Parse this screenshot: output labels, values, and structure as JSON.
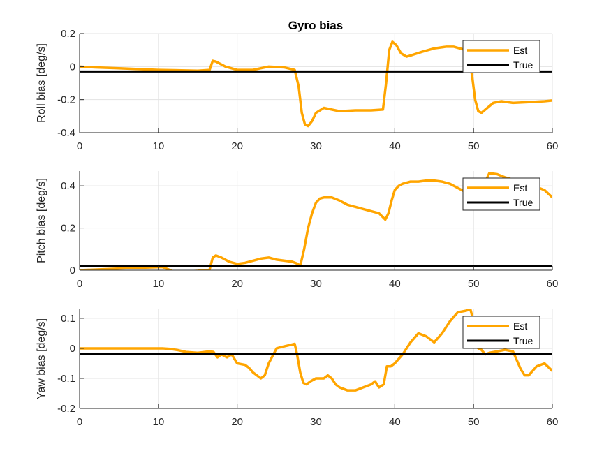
{
  "figure": {
    "title": "Gyro bias"
  },
  "colors": {
    "est": "#FFA500",
    "true": "#000000",
    "grid": "#e3e3e3",
    "axis": "#262626"
  },
  "chart_data": [
    {
      "type": "line",
      "title": "Gyro bias",
      "xlabel": "",
      "ylabel": "Roll bias [deg/s]",
      "xlim": [
        0,
        60
      ],
      "ylim": [
        -0.4,
        0.2
      ],
      "xticks": [
        0,
        10,
        20,
        30,
        40,
        50,
        60
      ],
      "yticks": [
        -0.4,
        -0.2,
        0,
        0.2
      ],
      "xtick_labels": [
        "0",
        "10",
        "20",
        "30",
        "40",
        "50",
        "60"
      ],
      "ytick_labels": [
        "-0.4",
        "-0.2",
        "0",
        "0.2"
      ],
      "grid": true,
      "legend": "top-right",
      "series": [
        {
          "name": "Est",
          "color": "#FFA500",
          "x": [
            0,
            2,
            5,
            10,
            15,
            16.5,
            16.9,
            17.3,
            18.5,
            20,
            22,
            24,
            26,
            27.3,
            27.8,
            28.2,
            28.6,
            29,
            29.5,
            30,
            31,
            32,
            33,
            35,
            37,
            38.5,
            38.9,
            39.3,
            39.7,
            40.2,
            40.8,
            41.5,
            42.2,
            43.5,
            45,
            46.5,
            47.5,
            49,
            49.4,
            49.8,
            50.2,
            50.6,
            51,
            51.5,
            52.5,
            53.5,
            55,
            57,
            59,
            60
          ],
          "y": [
            0.0,
            -0.005,
            -0.01,
            -0.02,
            -0.025,
            -0.02,
            0.035,
            0.03,
            0.0,
            -0.02,
            -0.02,
            0.0,
            -0.005,
            -0.02,
            -0.12,
            -0.28,
            -0.35,
            -0.36,
            -0.33,
            -0.28,
            -0.25,
            -0.26,
            -0.27,
            -0.265,
            -0.265,
            -0.26,
            -0.1,
            0.1,
            0.15,
            0.13,
            0.08,
            0.06,
            0.07,
            0.09,
            0.11,
            0.12,
            0.12,
            0.1,
            0.05,
            -0.05,
            -0.2,
            -0.27,
            -0.28,
            -0.26,
            -0.22,
            -0.21,
            -0.22,
            -0.215,
            -0.21,
            -0.205
          ]
        },
        {
          "name": "True",
          "color": "#000000",
          "x": [
            0,
            60
          ],
          "y": [
            -0.03,
            -0.03
          ]
        }
      ]
    },
    {
      "type": "line",
      "title": "",
      "xlabel": "",
      "ylabel": "Pitch bias [deg/s]",
      "xlim": [
        0,
        60
      ],
      "ylim": [
        0,
        0.47
      ],
      "xticks": [
        0,
        10,
        20,
        30,
        40,
        50,
        60
      ],
      "yticks": [
        0,
        0.2,
        0.4
      ],
      "xtick_labels": [
        "0",
        "10",
        "20",
        "30",
        "40",
        "50",
        "60"
      ],
      "ytick_labels": [
        "0",
        "0.2",
        "0.4"
      ],
      "grid": true,
      "legend": "top-right",
      "series": [
        {
          "name": "Est",
          "color": "#FFA500",
          "x": [
            0,
            2,
            5,
            8,
            10.5,
            11.2,
            12,
            13,
            15,
            16.5,
            16.9,
            17.3,
            18,
            19,
            20,
            21,
            22,
            23,
            24,
            25,
            26,
            27,
            27.7,
            28,
            28.5,
            29,
            29.5,
            30,
            30.5,
            31,
            32,
            33,
            34,
            35,
            36,
            37,
            38,
            38.8,
            39.2,
            39.6,
            40,
            40.5,
            41,
            42,
            43,
            44,
            45,
            46,
            47,
            48,
            49,
            50,
            51,
            51.5,
            52,
            53,
            54,
            55,
            57,
            59,
            60
          ],
          "y": [
            0.0,
            0.003,
            0.008,
            0.012,
            0.015,
            0.005,
            -0.008,
            -0.008,
            -0.003,
            0.003,
            0.06,
            0.07,
            0.06,
            0.04,
            0.03,
            0.035,
            0.045,
            0.055,
            0.06,
            0.05,
            0.045,
            0.04,
            0.03,
            0.02,
            0.1,
            0.2,
            0.27,
            0.32,
            0.34,
            0.345,
            0.345,
            0.33,
            0.31,
            0.3,
            0.29,
            0.28,
            0.27,
            0.24,
            0.27,
            0.33,
            0.38,
            0.4,
            0.41,
            0.42,
            0.42,
            0.425,
            0.425,
            0.42,
            0.41,
            0.39,
            0.37,
            0.36,
            0.38,
            0.42,
            0.46,
            0.455,
            0.44,
            0.43,
            0.41,
            0.38,
            0.345
          ]
        },
        {
          "name": "True",
          "color": "#000000",
          "x": [
            0,
            60
          ],
          "y": [
            0.02,
            0.02
          ]
        }
      ]
    },
    {
      "type": "line",
      "title": "",
      "xlabel": "",
      "ylabel": "Yaw bias [deg/s]",
      "xlim": [
        0,
        60
      ],
      "ylim": [
        -0.2,
        0.13
      ],
      "xticks": [
        0,
        10,
        20,
        30,
        40,
        50,
        60
      ],
      "yticks": [
        -0.2,
        -0.1,
        0,
        0.1
      ],
      "xtick_labels": [
        "0",
        "10",
        "20",
        "30",
        "40",
        "50",
        "60"
      ],
      "ytick_labels": [
        "-0.2",
        "-0.1",
        "0",
        "0.1"
      ],
      "grid": true,
      "legend": "top-right",
      "series": [
        {
          "name": "Est",
          "color": "#FFA500",
          "x": [
            0,
            2,
            5,
            8,
            10.5,
            11.5,
            12.5,
            13.5,
            15,
            16.5,
            17,
            17.5,
            18,
            18.7,
            19.3,
            20,
            21,
            21.5,
            22,
            22.5,
            23,
            23.5,
            24,
            25,
            25.7,
            26.5,
            27.3,
            27.6,
            28,
            28.4,
            28.8,
            29.3,
            30,
            30.5,
            31,
            31.5,
            32,
            32.5,
            33,
            34,
            35,
            36,
            37,
            37.5,
            38,
            38.6,
            39,
            39.5,
            40,
            41,
            42,
            43,
            44,
            45,
            46,
            47,
            48,
            49,
            49.6,
            50,
            50.3,
            50.6,
            51,
            51.5,
            52,
            53,
            54,
            55,
            56,
            56.5,
            57,
            58,
            59,
            60
          ],
          "y": [
            0.0,
            0.0,
            0.0,
            0.0,
            0.0,
            -0.002,
            -0.006,
            -0.012,
            -0.015,
            -0.01,
            -0.012,
            -0.03,
            -0.02,
            -0.03,
            -0.02,
            -0.05,
            -0.055,
            -0.065,
            -0.08,
            -0.09,
            -0.1,
            -0.09,
            -0.05,
            0.0,
            0.005,
            0.01,
            0.015,
            -0.02,
            -0.08,
            -0.115,
            -0.12,
            -0.11,
            -0.1,
            -0.1,
            -0.1,
            -0.09,
            -0.1,
            -0.12,
            -0.13,
            -0.14,
            -0.14,
            -0.13,
            -0.12,
            -0.11,
            -0.13,
            -0.12,
            -0.06,
            -0.06,
            -0.05,
            -0.02,
            0.02,
            0.05,
            0.04,
            0.02,
            0.05,
            0.09,
            0.12,
            0.125,
            0.13,
            0.09,
            0.03,
            0.0,
            -0.005,
            -0.02,
            -0.015,
            -0.01,
            -0.005,
            -0.01,
            -0.07,
            -0.09,
            -0.09,
            -0.06,
            -0.05,
            -0.075
          ]
        },
        {
          "name": "True",
          "color": "#000000",
          "x": [
            0,
            60
          ],
          "y": [
            -0.02,
            -0.02
          ]
        }
      ]
    }
  ]
}
